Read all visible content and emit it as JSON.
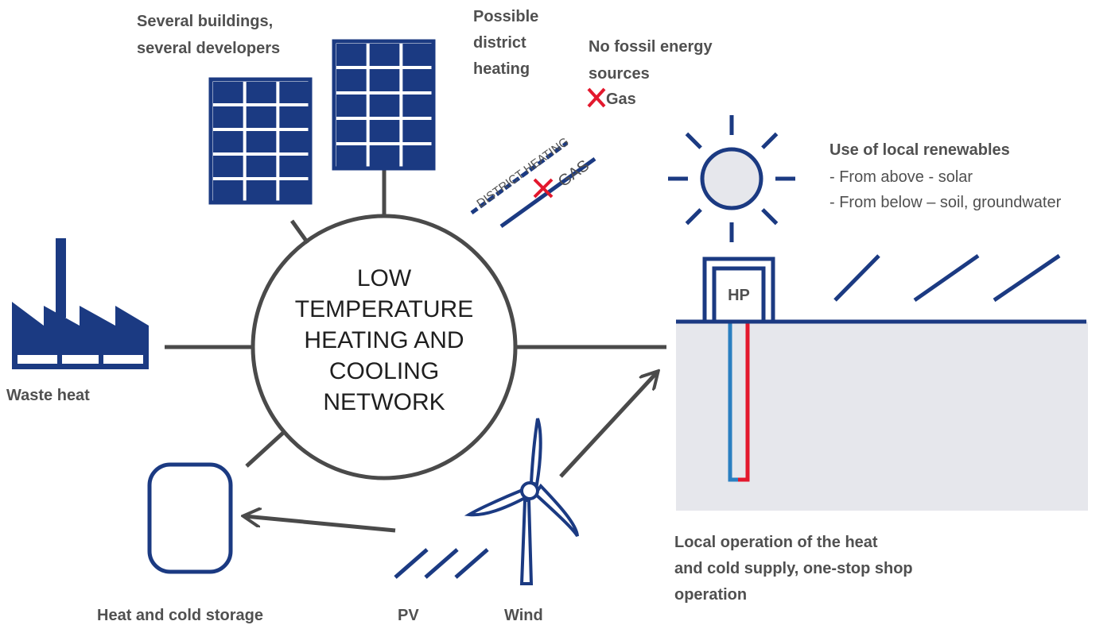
{
  "labels": {
    "buildings": [
      "Several buildings,",
      "several developers"
    ],
    "district": [
      "Possible",
      "district",
      "heating"
    ],
    "fossil": [
      "No fossil energy",
      "sources"
    ],
    "gas": "Gas",
    "pipe_district": "DISTRICT HEATING",
    "pipe_gas": "GAS",
    "center": [
      "LOW",
      "TEMPERATURE",
      "HEATING AND",
      "COOLING",
      "NETWORK"
    ],
    "renewables": {
      "title": "Use of local renewables",
      "items": [
        "- From above - solar",
        "- From below – soil, groundwater"
      ]
    },
    "hp": "HP",
    "waste": "Waste heat",
    "storage": "Heat and cold storage",
    "pv": "PV",
    "wind": "Wind",
    "operation": [
      "Local operation of the heat",
      "and cold supply, one-stop shop",
      "operation"
    ]
  }
}
